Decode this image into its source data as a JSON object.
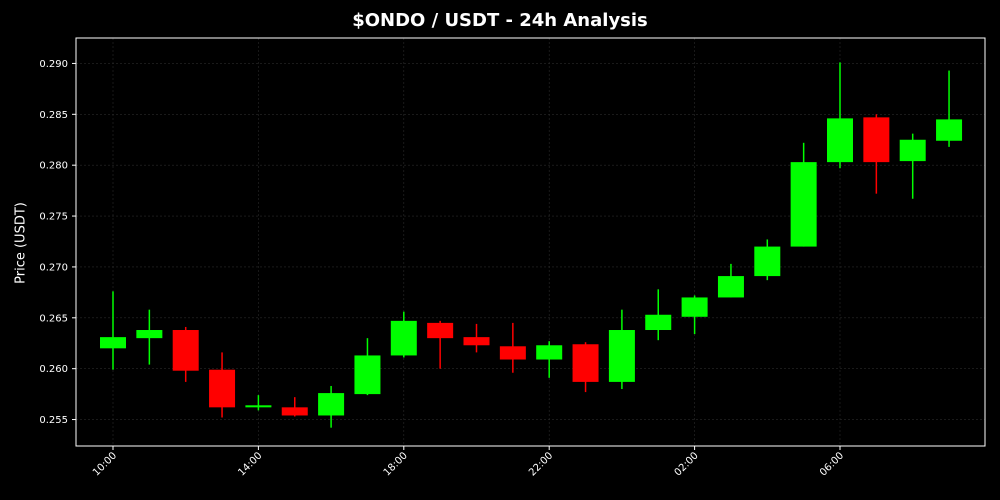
{
  "colors": {
    "background": "#000000",
    "axes_frame": "#ffffff",
    "grid": "#2a2a2a",
    "bullish": "#00ff00",
    "bearish": "#ff0000",
    "text": "#ffffff"
  },
  "chart_data": {
    "type": "candlestick",
    "title": "$ONDO / USDT - 24h Analysis",
    "xlabel": "",
    "ylabel": "Price (USDT)",
    "ylim": [
      0.2524,
      0.2925
    ],
    "grid": true,
    "yticks": [
      "0.255",
      "0.260",
      "0.265",
      "0.270",
      "0.275",
      "0.280",
      "0.285",
      "0.290"
    ],
    "xticks": [
      "10:00",
      "14:00",
      "18:00",
      "22:00",
      "02:00",
      "06:00"
    ],
    "candles": [
      {
        "time": "10:00",
        "open": 0.262,
        "high": 0.2676,
        "low": 0.2599,
        "close": 0.2631
      },
      {
        "time": "11:00",
        "open": 0.263,
        "high": 0.2658,
        "low": 0.2604,
        "close": 0.2638
      },
      {
        "time": "12:00",
        "open": 0.2638,
        "high": 0.2641,
        "low": 0.2587,
        "close": 0.2598
      },
      {
        "time": "13:00",
        "open": 0.2599,
        "high": 0.2616,
        "low": 0.2552,
        "close": 0.2562
      },
      {
        "time": "14:00",
        "open": 0.2562,
        "high": 0.2574,
        "low": 0.2559,
        "close": 0.2564
      },
      {
        "time": "15:00",
        "open": 0.2562,
        "high": 0.2572,
        "low": 0.2553,
        "close": 0.2554
      },
      {
        "time": "16:00",
        "open": 0.2554,
        "high": 0.2583,
        "low": 0.2542,
        "close": 0.2576
      },
      {
        "time": "17:00",
        "open": 0.2575,
        "high": 0.263,
        "low": 0.2574,
        "close": 0.2613
      },
      {
        "time": "18:00",
        "open": 0.2613,
        "high": 0.2656,
        "low": 0.2611,
        "close": 0.2647
      },
      {
        "time": "19:00",
        "open": 0.2645,
        "high": 0.2647,
        "low": 0.26,
        "close": 0.263
      },
      {
        "time": "20:00",
        "open": 0.2631,
        "high": 0.2644,
        "low": 0.2616,
        "close": 0.2623
      },
      {
        "time": "21:00",
        "open": 0.2622,
        "high": 0.2645,
        "low": 0.2596,
        "close": 0.2609
      },
      {
        "time": "22:00",
        "open": 0.2609,
        "high": 0.2627,
        "low": 0.2591,
        "close": 0.2623
      },
      {
        "time": "23:00",
        "open": 0.2624,
        "high": 0.2626,
        "low": 0.2577,
        "close": 0.2587
      },
      {
        "time": "00:00",
        "open": 0.2587,
        "high": 0.2658,
        "low": 0.258,
        "close": 0.2638
      },
      {
        "time": "01:00",
        "open": 0.2638,
        "high": 0.2678,
        "low": 0.2628,
        "close": 0.2653
      },
      {
        "time": "02:00",
        "open": 0.2651,
        "high": 0.2672,
        "low": 0.2634,
        "close": 0.267
      },
      {
        "time": "03:00",
        "open": 0.267,
        "high": 0.2703,
        "low": 0.267,
        "close": 0.2691
      },
      {
        "time": "04:00",
        "open": 0.2691,
        "high": 0.2727,
        "low": 0.2687,
        "close": 0.272
      },
      {
        "time": "05:00",
        "open": 0.272,
        "high": 0.2822,
        "low": 0.272,
        "close": 0.2803
      },
      {
        "time": "06:00",
        "open": 0.2803,
        "high": 0.2901,
        "low": 0.2797,
        "close": 0.2846
      },
      {
        "time": "07:00",
        "open": 0.2847,
        "high": 0.285,
        "low": 0.2772,
        "close": 0.2803
      },
      {
        "time": "08:00",
        "open": 0.2804,
        "high": 0.2831,
        "low": 0.2767,
        "close": 0.2825
      },
      {
        "time": "09:00",
        "open": 0.2824,
        "high": 0.2893,
        "low": 0.2818,
        "close": 0.2845
      }
    ]
  }
}
